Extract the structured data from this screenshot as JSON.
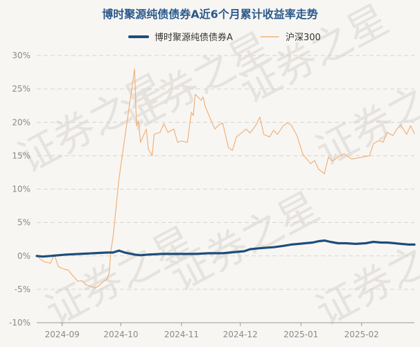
{
  "chart_data": {
    "type": "line",
    "title": "博时聚源纯债债券A近6个月累计收益率走势",
    "watermark": "证券之星",
    "xlabel": "",
    "ylabel": "",
    "ylim": [
      -10,
      30
    ],
    "yticks": [
      30,
      25,
      20,
      15,
      10,
      5,
      0,
      -5,
      -10
    ],
    "ytick_labels": [
      "30%",
      "25%",
      "20%",
      "15%",
      "10%",
      "5%",
      "0%",
      "-5%",
      "-10%"
    ],
    "xticks": [
      {
        "date": "2024-09-01",
        "label": "2024-09"
      },
      {
        "date": "2024-10-01",
        "label": "2024-10"
      },
      {
        "date": "2024-11-01",
        "label": "2024-11"
      },
      {
        "date": "2024-12-01",
        "label": "2024-12"
      },
      {
        "date": "2025-01-01",
        "label": "2025-01"
      },
      {
        "date": "2025-02-01",
        "label": "2025-02"
      }
    ],
    "xlim": [
      "2024-08-19",
      "2025-02-28"
    ],
    "grid": true,
    "legend_position": "top",
    "series": [
      {
        "name": "博时聚源纯债债券A",
        "color": "#1e4d7b",
        "points": [
          [
            "2024-08-19",
            0.0
          ],
          [
            "2024-08-22",
            -0.1
          ],
          [
            "2024-08-26",
            0.0
          ],
          [
            "2024-08-30",
            0.1
          ],
          [
            "2024-09-03",
            0.2
          ],
          [
            "2024-09-10",
            0.3
          ],
          [
            "2024-09-17",
            0.4
          ],
          [
            "2024-09-24",
            0.5
          ],
          [
            "2024-09-27",
            0.5
          ],
          [
            "2024-09-30",
            0.8
          ],
          [
            "2024-10-03",
            0.5
          ],
          [
            "2024-10-08",
            0.2
          ],
          [
            "2024-10-11",
            0.1
          ],
          [
            "2024-10-15",
            0.2
          ],
          [
            "2024-10-22",
            0.3
          ],
          [
            "2024-10-31",
            0.3
          ],
          [
            "2024-11-08",
            0.3
          ],
          [
            "2024-11-15",
            0.4
          ],
          [
            "2024-11-22",
            0.4
          ],
          [
            "2024-11-29",
            0.6
          ],
          [
            "2024-12-03",
            0.7
          ],
          [
            "2024-12-06",
            1.0
          ],
          [
            "2024-12-09",
            1.1
          ],
          [
            "2024-12-13",
            1.2
          ],
          [
            "2024-12-18",
            1.3
          ],
          [
            "2024-12-23",
            1.5
          ],
          [
            "2024-12-27",
            1.7
          ],
          [
            "2024-12-31",
            1.8
          ],
          [
            "2025-01-03",
            1.9
          ],
          [
            "2025-01-07",
            2.0
          ],
          [
            "2025-01-10",
            2.2
          ],
          [
            "2025-01-13",
            2.3
          ],
          [
            "2025-01-16",
            2.1
          ],
          [
            "2025-01-20",
            1.9
          ],
          [
            "2025-01-24",
            1.9
          ],
          [
            "2025-01-29",
            1.8
          ],
          [
            "2025-02-03",
            1.9
          ],
          [
            "2025-02-07",
            2.1
          ],
          [
            "2025-02-11",
            2.0
          ],
          [
            "2025-02-14",
            2.0
          ],
          [
            "2025-02-18",
            1.9
          ],
          [
            "2025-02-21",
            1.8
          ],
          [
            "2025-02-25",
            1.7
          ],
          [
            "2025-02-28",
            1.7
          ]
        ]
      },
      {
        "name": "沪深300",
        "color": "#f0b27a",
        "points": [
          [
            "2024-08-19",
            0.0
          ],
          [
            "2024-08-21",
            -0.5
          ],
          [
            "2024-08-23",
            -0.9
          ],
          [
            "2024-08-26",
            -1.1
          ],
          [
            "2024-08-28",
            0.2
          ],
          [
            "2024-08-30",
            -1.6
          ],
          [
            "2024-09-02",
            -2.0
          ],
          [
            "2024-09-04",
            -2.1
          ],
          [
            "2024-09-06",
            -2.8
          ],
          [
            "2024-09-09",
            -3.8
          ],
          [
            "2024-09-11",
            -3.7
          ],
          [
            "2024-09-13",
            -4.3
          ],
          [
            "2024-09-16",
            -4.6
          ],
          [
            "2024-09-18",
            -4.8
          ],
          [
            "2024-09-20",
            -4.4
          ],
          [
            "2024-09-23",
            -3.6
          ],
          [
            "2024-09-24",
            -3.5
          ],
          [
            "2024-09-25",
            -2.5
          ],
          [
            "2024-09-26",
            1.0
          ],
          [
            "2024-09-27",
            2.8
          ],
          [
            "2024-09-30",
            11.5
          ],
          [
            "2024-10-08",
            28.0
          ],
          [
            "2024-10-09",
            19.5
          ],
          [
            "2024-10-10",
            20.2
          ],
          [
            "2024-10-11",
            17.0
          ],
          [
            "2024-10-14",
            19.0
          ],
          [
            "2024-10-15",
            16.0
          ],
          [
            "2024-10-17",
            15.0
          ],
          [
            "2024-10-18",
            18.2
          ],
          [
            "2024-10-21",
            18.5
          ],
          [
            "2024-10-23",
            19.8
          ],
          [
            "2024-10-25",
            18.5
          ],
          [
            "2024-10-28",
            19.0
          ],
          [
            "2024-10-30",
            17.0
          ],
          [
            "2024-11-01",
            17.2
          ],
          [
            "2024-11-04",
            17.0
          ],
          [
            "2024-11-06",
            21.5
          ],
          [
            "2024-11-07",
            21.0
          ],
          [
            "2024-11-08",
            24.2
          ],
          [
            "2024-11-11",
            23.3
          ],
          [
            "2024-11-12",
            23.8
          ],
          [
            "2024-11-13",
            22.5
          ],
          [
            "2024-11-15",
            21.0
          ],
          [
            "2024-11-18",
            19.0
          ],
          [
            "2024-11-20",
            19.6
          ],
          [
            "2024-11-22",
            19.9
          ],
          [
            "2024-11-25",
            16.2
          ],
          [
            "2024-11-27",
            15.8
          ],
          [
            "2024-11-29",
            17.8
          ],
          [
            "2024-12-02",
            18.5
          ],
          [
            "2024-12-04",
            19.0
          ],
          [
            "2024-12-06",
            18.4
          ],
          [
            "2024-12-09",
            19.6
          ],
          [
            "2024-12-11",
            20.8
          ],
          [
            "2024-12-13",
            18.2
          ],
          [
            "2024-12-16",
            17.8
          ],
          [
            "2024-12-18",
            18.8
          ],
          [
            "2024-12-20",
            18.2
          ],
          [
            "2024-12-23",
            19.5
          ],
          [
            "2024-12-25",
            19.9
          ],
          [
            "2024-12-27",
            19.6
          ],
          [
            "2024-12-30",
            18.0
          ],
          [
            "2025-01-02",
            15.2
          ],
          [
            "2025-01-06",
            13.8
          ],
          [
            "2025-01-08",
            14.3
          ],
          [
            "2025-01-10",
            13.0
          ],
          [
            "2025-01-13",
            12.3
          ],
          [
            "2025-01-15",
            14.8
          ],
          [
            "2025-01-17",
            14.2
          ],
          [
            "2025-01-21",
            15.0
          ],
          [
            "2025-01-23",
            15.3
          ],
          [
            "2025-01-27",
            14.5
          ],
          [
            "2025-02-05",
            15.0
          ],
          [
            "2025-02-07",
            16.8
          ],
          [
            "2025-02-10",
            17.3
          ],
          [
            "2025-02-12",
            17.0
          ],
          [
            "2025-02-14",
            18.5
          ],
          [
            "2025-02-17",
            18.0
          ],
          [
            "2025-02-19",
            19.0
          ],
          [
            "2025-02-21",
            19.6
          ],
          [
            "2025-02-24",
            18.2
          ],
          [
            "2025-02-26",
            19.5
          ],
          [
            "2025-02-28",
            18.3
          ]
        ]
      }
    ]
  }
}
